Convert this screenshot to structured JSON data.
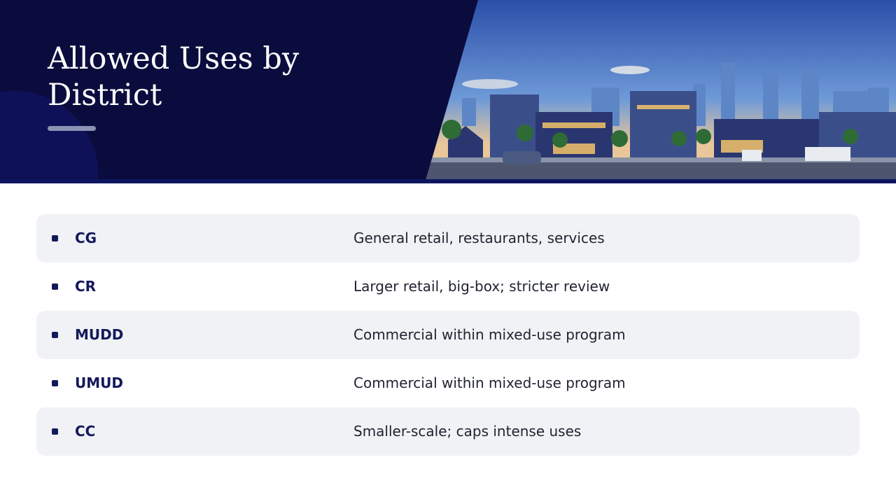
{
  "header": {
    "title": "Allowed Uses by District"
  },
  "table": {
    "rows": [
      [
        "CG",
        "General retail, restaurants, services"
      ],
      [
        "CR",
        "Larger retail, big-box; stricter review"
      ],
      [
        "MUDD",
        "Commercial within mixed-use program"
      ],
      [
        "UMUD",
        "Commercial within mixed-use program"
      ],
      [
        "CC",
        "Smaller-scale; caps intense uses"
      ]
    ]
  }
}
